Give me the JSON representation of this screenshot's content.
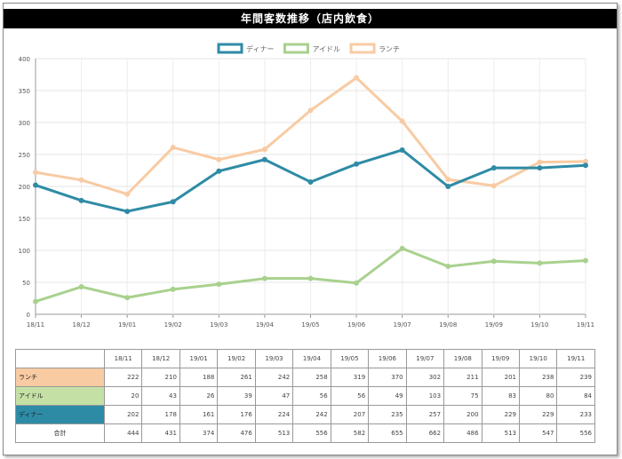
{
  "title": "年間客数推移（店内飲食）",
  "chart_data": {
    "type": "line",
    "categories": [
      "18/11",
      "18/12",
      "19/01",
      "19/02",
      "19/03",
      "19/04",
      "19/05",
      "19/06",
      "19/07",
      "19/08",
      "19/09",
      "19/10",
      "19/11"
    ],
    "ylim": [
      0,
      400
    ],
    "yticks": [
      0,
      50,
      100,
      150,
      200,
      250,
      300,
      350,
      400
    ],
    "legend_position": "top-center",
    "series": [
      {
        "key": "dinner",
        "name": "ディナー",
        "color": "#2e8ba5",
        "values": [
          202,
          178,
          161,
          176,
          224,
          242,
          207,
          235,
          257,
          200,
          229,
          229,
          233
        ]
      },
      {
        "key": "idle",
        "name": "アイドル",
        "color": "#a9d18e",
        "values": [
          20,
          43,
          26,
          39,
          47,
          56,
          56,
          49,
          103,
          75,
          83,
          80,
          84
        ]
      },
      {
        "key": "lunch",
        "name": "ランチ",
        "color": "#f8cba3",
        "values": [
          222,
          210,
          188,
          261,
          242,
          258,
          319,
          370,
          302,
          211,
          201,
          238,
          239
        ]
      }
    ]
  },
  "table": {
    "rows": [
      {
        "label": "ランチ",
        "color": "#f8cba3",
        "values": [
          222,
          210,
          188,
          261,
          242,
          258,
          319,
          370,
          302,
          211,
          201,
          238,
          239
        ]
      },
      {
        "label": "アイドル",
        "color": "#c5e0a5",
        "values": [
          20,
          43,
          26,
          39,
          47,
          56,
          56,
          49,
          103,
          75,
          83,
          80,
          84
        ]
      },
      {
        "label": "ディナー",
        "color": "#2e8ba5",
        "values": [
          202,
          178,
          161,
          176,
          224,
          242,
          207,
          235,
          257,
          200,
          229,
          229,
          233
        ]
      }
    ],
    "total_label": "合計",
    "totals": [
      444,
      431,
      374,
      476,
      513,
      556,
      582,
      655,
      662,
      486,
      513,
      547,
      556
    ]
  }
}
